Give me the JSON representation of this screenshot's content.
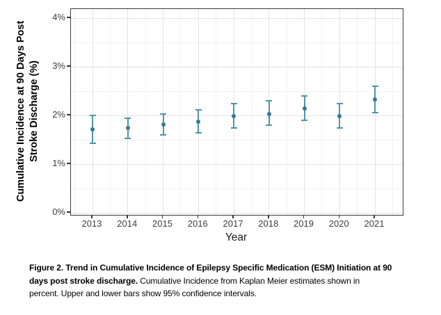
{
  "chart_data": {
    "type": "scatter",
    "title": "",
    "xlabel": "Year",
    "ylabel": "Cumulative Incidence at 90 Days Post Stroke Discharge (%)",
    "ylabel_line1": "Cumulative Incidence at 90 Days Post",
    "ylabel_line2": "Stroke Discharge (%)",
    "x": [
      2013,
      2014,
      2015,
      2016,
      2017,
      2018,
      2019,
      2020,
      2021
    ],
    "series": [
      {
        "name": "Cumulative Incidence",
        "values": [
          1.72,
          1.75,
          1.81,
          1.87,
          1.98,
          2.03,
          2.14,
          1.98,
          2.33
        ],
        "ci_lower": [
          1.43,
          1.53,
          1.6,
          1.64,
          1.74,
          1.8,
          1.9,
          1.74,
          2.06
        ],
        "ci_upper": [
          2.0,
          1.94,
          2.03,
          2.12,
          2.24,
          2.3,
          2.4,
          2.24,
          2.6
        ]
      }
    ],
    "ylim": [
      0,
      4.2
    ],
    "ytick_values": [
      0,
      1,
      2,
      3,
      4
    ],
    "ytick_labels": [
      "0%",
      "1%",
      "2%",
      "3%",
      "4%"
    ],
    "grid": "major and minor, light gray, on white panel",
    "legend": "none",
    "error_bars": "95% confidence intervals",
    "colors": {
      "point": "#35798e",
      "error_bar": "#4f95a5",
      "grid_major": "#e3e3e3",
      "grid_minor": "#f2f2f2",
      "panel_border": "#3a3a3a",
      "axis_text": "#3d3d3d"
    }
  },
  "caption": {
    "lines": [
      {
        "bold": "Figure 2. Trend in Cumulative Incidence of Epilepsy Specific Medication (ESM) Initiation at 90",
        "regular": ""
      },
      {
        "bold": "days post stroke discharge.",
        "regular": " Cumulative Incidence from Kaplan Meier estimates shown in"
      },
      {
        "bold": "",
        "regular": "percent. Upper and lower bars show 95% confidence intervals."
      }
    ]
  }
}
